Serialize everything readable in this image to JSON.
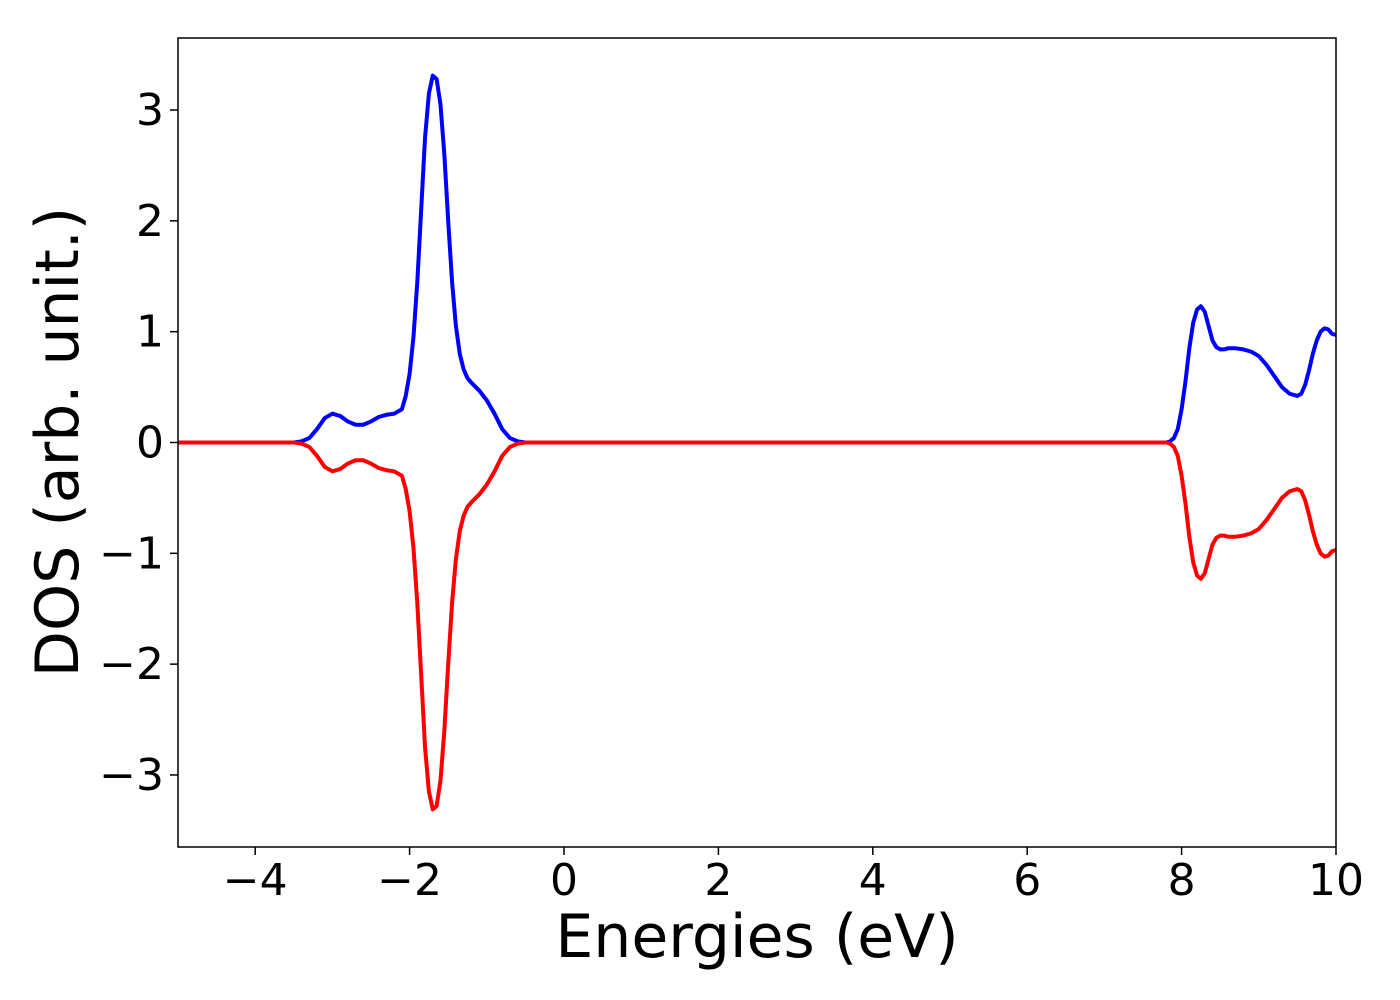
{
  "chart_data": {
    "type": "line",
    "title": "",
    "xlabel": "Energies (eV)",
    "ylabel": "DOS (arb. unit.)",
    "xlim": [
      -5,
      10
    ],
    "ylim": [
      -3.65,
      3.65
    ],
    "grid": false,
    "xticks": [
      -4,
      -2,
      0,
      2,
      4,
      6,
      8,
      10
    ],
    "yticks": [
      -3,
      -2,
      -1,
      0,
      1,
      2,
      3
    ],
    "xtick_labels": [
      "−4",
      "−2",
      "0",
      "2",
      "4",
      "6",
      "8",
      "10"
    ],
    "ytick_labels": [
      "−3",
      "−2",
      "−1",
      "0",
      "1",
      "2",
      "3"
    ],
    "series": [
      {
        "color": "#0000ff",
        "x": [
          -5,
          -3.5,
          -3.4,
          -3.3,
          -3.2,
          -3.1,
          -3.0,
          -2.9,
          -2.8,
          -2.7,
          -2.6,
          -2.5,
          -2.4,
          -2.3,
          -2.2,
          -2.1,
          -2.05,
          -2.0,
          -1.95,
          -1.9,
          -1.85,
          -1.8,
          -1.75,
          -1.7,
          -1.65,
          -1.6,
          -1.55,
          -1.5,
          -1.45,
          -1.4,
          -1.35,
          -1.3,
          -1.25,
          -1.2,
          -1.1,
          -1.0,
          -0.9,
          -0.8,
          -0.7,
          -0.6,
          -0.5,
          -0.4,
          7.6,
          7.8,
          7.85,
          7.9,
          7.95,
          8.0,
          8.05,
          8.1,
          8.15,
          8.2,
          8.25,
          8.3,
          8.35,
          8.4,
          8.45,
          8.5,
          8.55,
          8.6,
          8.7,
          8.8,
          8.9,
          9.0,
          9.1,
          9.2,
          9.3,
          9.4,
          9.5,
          9.55,
          9.6,
          9.65,
          9.7,
          9.75,
          9.8,
          9.85,
          9.9,
          9.95,
          10.0
        ],
        "y": [
          0,
          0,
          0.01,
          0.04,
          0.12,
          0.22,
          0.26,
          0.24,
          0.19,
          0.16,
          0.16,
          0.19,
          0.23,
          0.25,
          0.26,
          0.3,
          0.42,
          0.62,
          0.95,
          1.45,
          2.1,
          2.75,
          3.15,
          3.31,
          3.28,
          3.05,
          2.6,
          2.0,
          1.45,
          1.05,
          0.8,
          0.66,
          0.58,
          0.54,
          0.47,
          0.38,
          0.26,
          0.12,
          0.04,
          0.01,
          0.0,
          0,
          0,
          0,
          0.01,
          0.04,
          0.12,
          0.3,
          0.55,
          0.85,
          1.08,
          1.2,
          1.23,
          1.18,
          1.05,
          0.92,
          0.86,
          0.84,
          0.84,
          0.85,
          0.85,
          0.84,
          0.82,
          0.78,
          0.7,
          0.6,
          0.5,
          0.44,
          0.42,
          0.44,
          0.52,
          0.65,
          0.8,
          0.92,
          1.0,
          1.03,
          1.02,
          0.98,
          0.97
        ]
      },
      {
        "color": "#ff0000",
        "x": [
          -5,
          -3.5,
          -3.4,
          -3.3,
          -3.2,
          -3.1,
          -3.0,
          -2.9,
          -2.8,
          -2.7,
          -2.6,
          -2.5,
          -2.4,
          -2.3,
          -2.2,
          -2.1,
          -2.05,
          -2.0,
          -1.95,
          -1.9,
          -1.85,
          -1.8,
          -1.75,
          -1.7,
          -1.65,
          -1.6,
          -1.55,
          -1.5,
          -1.45,
          -1.4,
          -1.35,
          -1.3,
          -1.25,
          -1.2,
          -1.1,
          -1.0,
          -0.9,
          -0.8,
          -0.7,
          -0.6,
          -0.5,
          -0.4,
          7.6,
          7.8,
          7.85,
          7.9,
          7.95,
          8.0,
          8.05,
          8.1,
          8.15,
          8.2,
          8.25,
          8.3,
          8.35,
          8.4,
          8.45,
          8.5,
          8.55,
          8.6,
          8.7,
          8.8,
          8.9,
          9.0,
          9.1,
          9.2,
          9.3,
          9.4,
          9.5,
          9.55,
          9.6,
          9.65,
          9.7,
          9.75,
          9.8,
          9.85,
          9.9,
          9.95,
          10.0
        ],
        "y": [
          0,
          0,
          -0.01,
          -0.04,
          -0.12,
          -0.22,
          -0.26,
          -0.24,
          -0.19,
          -0.16,
          -0.16,
          -0.19,
          -0.23,
          -0.25,
          -0.26,
          -0.3,
          -0.42,
          -0.62,
          -0.95,
          -1.45,
          -2.1,
          -2.75,
          -3.15,
          -3.31,
          -3.28,
          -3.05,
          -2.6,
          -2.0,
          -1.45,
          -1.05,
          -0.8,
          -0.66,
          -0.58,
          -0.54,
          -0.47,
          -0.38,
          -0.26,
          -0.12,
          -0.04,
          -0.01,
          0.0,
          0,
          0,
          0,
          -0.01,
          -0.04,
          -0.12,
          -0.3,
          -0.55,
          -0.85,
          -1.08,
          -1.2,
          -1.23,
          -1.18,
          -1.05,
          -0.92,
          -0.86,
          -0.84,
          -0.84,
          -0.85,
          -0.85,
          -0.84,
          -0.82,
          -0.78,
          -0.7,
          -0.6,
          -0.5,
          -0.44,
          -0.42,
          -0.44,
          -0.52,
          -0.65,
          -0.8,
          -0.92,
          -1.0,
          -1.03,
          -1.02,
          -0.98,
          -0.97
        ]
      }
    ]
  }
}
